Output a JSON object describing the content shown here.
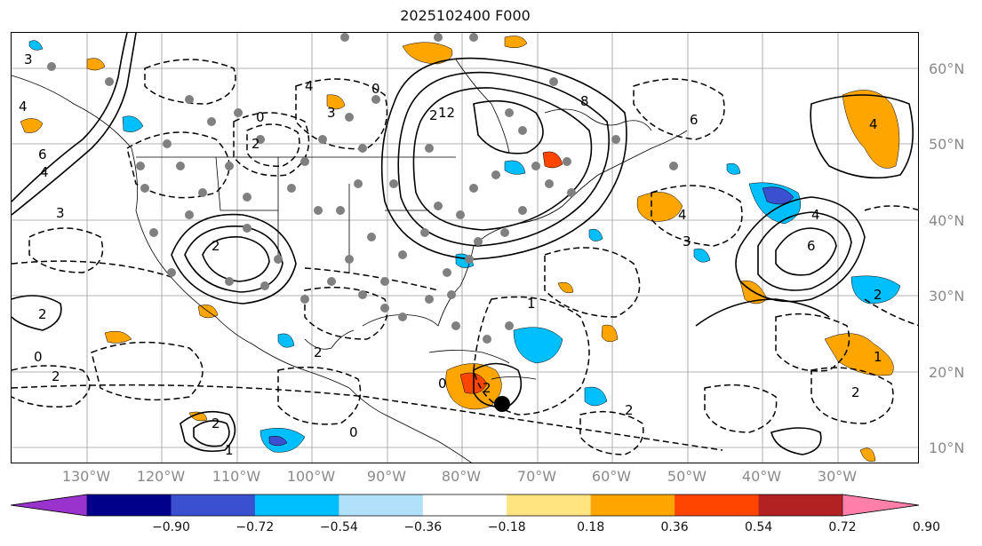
{
  "title": "2025102400 F000",
  "lat_labels": [
    "60°N",
    "50°N",
    "40°N",
    "30°N",
    "20°N",
    "10°N"
  ],
  "lon_labels": [
    "130°W",
    "120°W",
    "110°W",
    "100°W",
    "90°W",
    "80°W",
    "70°W",
    "60°W",
    "50°W",
    "40°W",
    "30°W"
  ],
  "colorbar": {
    "colors": [
      "#9a32cd",
      "#00008b",
      "#3a50d0",
      "#00bfff",
      "#b0e0fa",
      "#ffffff",
      "#ffe480",
      "#ffa500",
      "#ff4500",
      "#b22222",
      "#ff7faa"
    ],
    "tick_labels": [
      "−0.90",
      "−0.72",
      "−0.54",
      "−0.36",
      "−0.18",
      "0.18",
      "0.36",
      "0.54",
      "0.72",
      "0.90"
    ]
  },
  "contour_labels": [
    "3",
    "4",
    "6",
    "4",
    "3",
    "2",
    "0",
    "2",
    "2",
    "0",
    "2",
    "4",
    "3",
    "2",
    "0",
    "2",
    "2",
    "8",
    "12",
    "0",
    "1",
    "4",
    "4",
    "6",
    "6",
    "4",
    "3",
    "2",
    "1",
    "2",
    "2",
    "0",
    "2",
    "1"
  ],
  "colors": {
    "dashed": "#000000",
    "grid": "#9a9a9a",
    "marker": "#808080",
    "center": "#000000"
  }
}
